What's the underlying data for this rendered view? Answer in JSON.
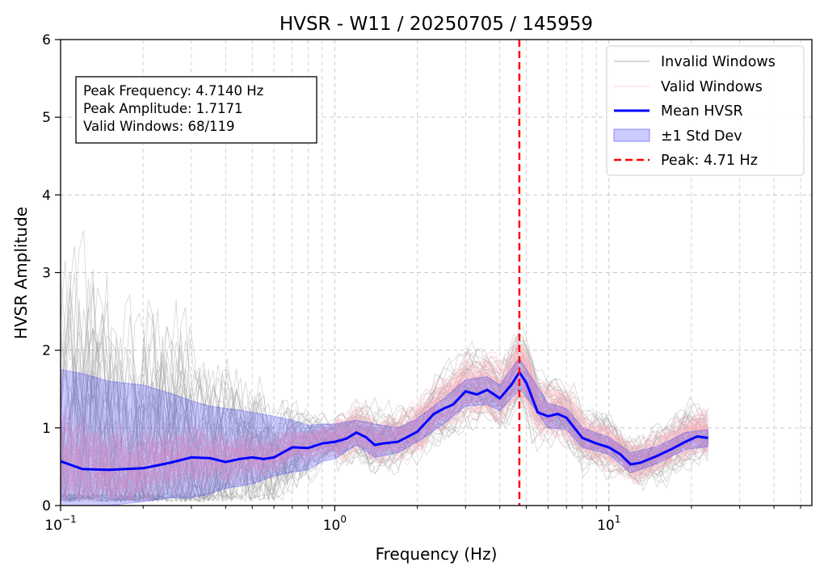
{
  "chart_data": {
    "type": "line",
    "title": "HVSR - W11 / 20250705 / 145959",
    "xlabel": "Frequency (Hz)",
    "ylabel": "HVSR Amplitude",
    "x_scale": "log",
    "xlim": [
      0.1,
      55
    ],
    "ylim": [
      0,
      6
    ],
    "grid": true,
    "legend_position": "top-right",
    "x_ticks": [
      {
        "value": 0.1,
        "base": "10",
        "exp": "−1"
      },
      {
        "value": 1,
        "base": "10",
        "exp": "0"
      },
      {
        "value": 10,
        "base": "10",
        "exp": "1"
      }
    ],
    "y_ticks": [
      0,
      1,
      2,
      3,
      4,
      5,
      6
    ],
    "series": [
      {
        "name": "Mean HVSR",
        "color": "#0000ff",
        "x": [
          0.1,
          0.12,
          0.15,
          0.2,
          0.25,
          0.3,
          0.35,
          0.4,
          0.45,
          0.5,
          0.55,
          0.6,
          0.7,
          0.8,
          0.9,
          1.0,
          1.1,
          1.2,
          1.3,
          1.4,
          1.5,
          1.7,
          2.0,
          2.3,
          2.5,
          2.7,
          3.0,
          3.3,
          3.6,
          4.0,
          4.4,
          4.714,
          5.0,
          5.5,
          6.0,
          6.5,
          7.0,
          8.0,
          9.0,
          10.0,
          11.0,
          12.0,
          13.0,
          15.0,
          17.0,
          19.0,
          21.0,
          23.0
        ],
        "y": [
          0.57,
          0.47,
          0.46,
          0.48,
          0.55,
          0.62,
          0.61,
          0.56,
          0.6,
          0.62,
          0.6,
          0.62,
          0.75,
          0.74,
          0.8,
          0.82,
          0.86,
          0.94,
          0.88,
          0.78,
          0.8,
          0.82,
          0.95,
          1.18,
          1.25,
          1.3,
          1.47,
          1.43,
          1.49,
          1.38,
          1.55,
          1.717,
          1.58,
          1.2,
          1.15,
          1.18,
          1.13,
          0.87,
          0.8,
          0.75,
          0.66,
          0.53,
          0.55,
          0.64,
          0.73,
          0.82,
          0.89,
          0.87
        ]
      }
    ],
    "std_band": {
      "name": "±1 Std Dev",
      "color": "#0000ff",
      "x": [
        0.1,
        0.12,
        0.15,
        0.2,
        0.25,
        0.3,
        0.35,
        0.4,
        0.45,
        0.5,
        0.6,
        0.7,
        0.8,
        0.9,
        1.0,
        1.2,
        1.4,
        1.7,
        2.0,
        2.5,
        3.0,
        3.6,
        4.0,
        4.714,
        5.0,
        6.0,
        7.0,
        8.0,
        10.0,
        12.0,
        15.0,
        19.0,
        23.0
      ],
      "upper": [
        1.75,
        1.7,
        1.6,
        1.55,
        1.45,
        1.35,
        1.28,
        1.25,
        1.23,
        1.2,
        1.15,
        1.1,
        1.03,
        1.05,
        1.05,
        1.1,
        1.05,
        1.0,
        1.12,
        1.38,
        1.62,
        1.66,
        1.55,
        1.9,
        1.75,
        1.32,
        1.25,
        1.0,
        0.88,
        0.68,
        0.76,
        0.94,
        0.98
      ],
      "lower": [
        0.0,
        0.0,
        0.0,
        0.05,
        0.1,
        0.1,
        0.15,
        0.22,
        0.25,
        0.28,
        0.38,
        0.43,
        0.46,
        0.57,
        0.6,
        0.78,
        0.62,
        0.68,
        0.82,
        1.05,
        1.28,
        1.3,
        1.22,
        1.5,
        1.4,
        1.0,
        0.98,
        0.75,
        0.66,
        0.42,
        0.54,
        0.72,
        0.76
      ]
    },
    "annotations": {
      "peak_line": {
        "name": "Peak: 4.71 Hz",
        "x": 4.714,
        "color": "#ff0000"
      },
      "info_box": [
        "Peak Frequency: 4.7140 Hz",
        "Peak Amplitude: 1.7171",
        "Valid Windows: 68/119"
      ]
    },
    "legend": [
      {
        "label": "Invalid Windows",
        "kind": "thin-line",
        "color": "#b0b0b0"
      },
      {
        "label": "Valid Windows",
        "kind": "thin-line",
        "color": "#ffc0cb"
      },
      {
        "label": "Mean HVSR",
        "kind": "line",
        "color": "#0000ff"
      },
      {
        "label": "±1 Std Dev",
        "kind": "patch",
        "color": "#0000ff"
      },
      {
        "label": "Peak: 4.71 Hz",
        "kind": "dashed",
        "color": "#ff0000"
      }
    ],
    "window_traces": {
      "invalid_count": 51,
      "valid_count": 68
    }
  }
}
